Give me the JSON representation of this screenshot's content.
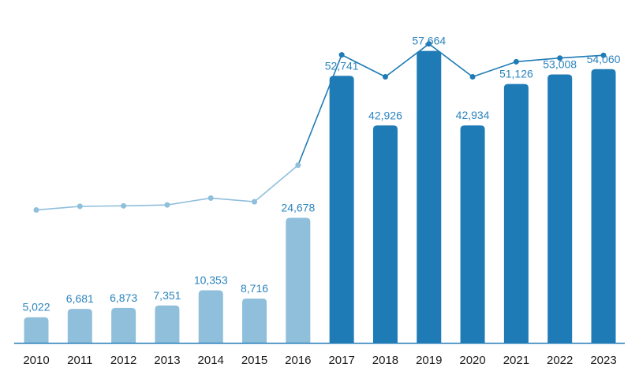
{
  "chart_data": {
    "type": "bar",
    "title": "",
    "xlabel": "",
    "ylabel": "",
    "ylim": [
      0,
      61500
    ],
    "grid": false,
    "categories": [
      "2010",
      "2011",
      "2012",
      "2013",
      "2014",
      "2015",
      "2016",
      "2017",
      "2018",
      "2019",
      "2020",
      "2021",
      "2022",
      "2023"
    ],
    "series": [
      {
        "name": "bars",
        "values": [
          5022,
          6681,
          6873,
          7351,
          10353,
          8716,
          24678,
          52741,
          42926,
          57664,
          42934,
          51126,
          53008,
          54060
        ],
        "labels": [
          "5,022",
          "6,681",
          "6,873",
          "7,351",
          "10,353",
          "8,716",
          "24,678",
          "52,741",
          "42,926",
          "57,664",
          "42,934",
          "51,126",
          "53,008",
          "54,060"
        ]
      },
      {
        "name": "trend line",
        "type": "line",
        "values": [
          5.0,
          5.8,
          5.9,
          6.1,
          7.6,
          6.8,
          14.8,
          38.9,
          34.1,
          41.3,
          34.1,
          37.4,
          38.2,
          38.8
        ],
        "ylim": [
          -24,
          44
        ],
        "note": "secondary unlabeled axis"
      }
    ],
    "colors": {
      "light_bar": "#8fbfdb",
      "dark_bar": "#1f7bb6",
      "light_line": "#8fbfdb",
      "dark_line": "#1f7bb6",
      "label_color": "#2b83bd",
      "axis": "#1f7bb6"
    },
    "highlight_from_index": 7
  }
}
